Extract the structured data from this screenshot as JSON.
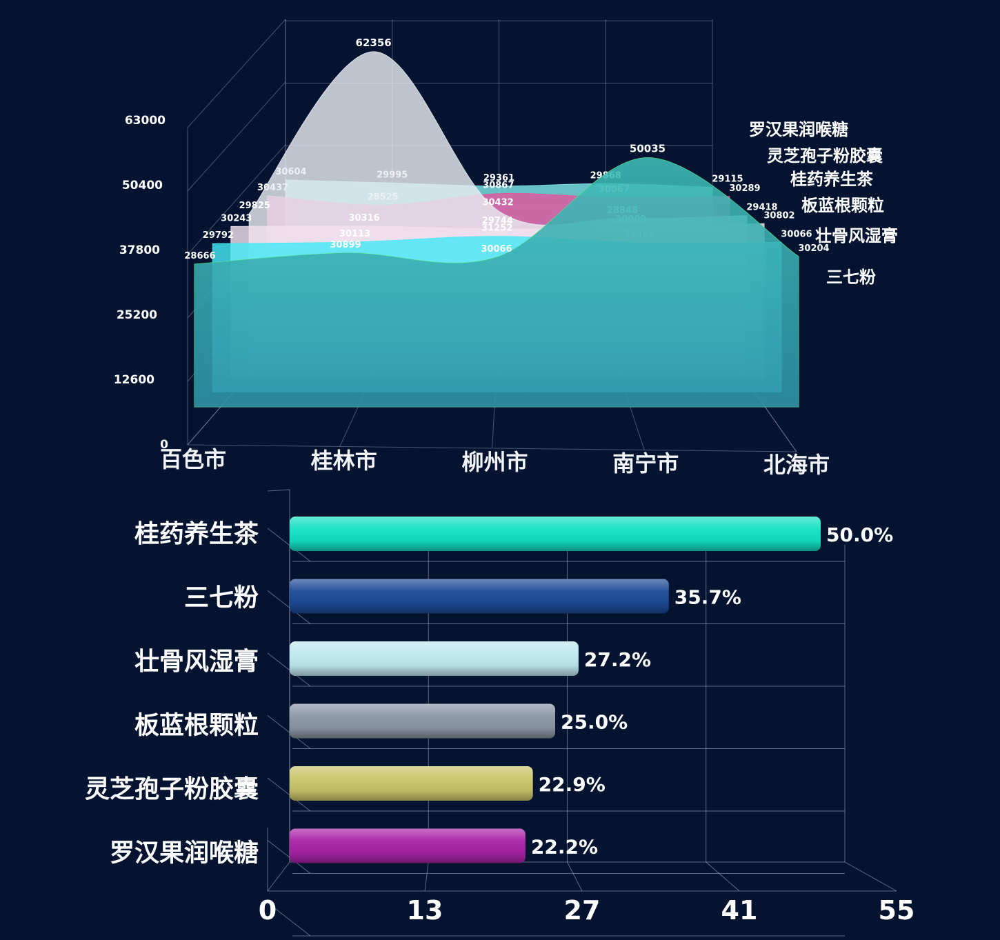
{
  "chart_data": [
    {
      "type": "area",
      "title": "",
      "categories": [
        "百色市",
        "桂林市",
        "柳州市",
        "南宁市",
        "北海市"
      ],
      "y_ticks": [
        "0",
        "12600",
        "25200",
        "37800",
        "50400",
        "63000"
      ],
      "ylim": [
        0,
        63000
      ],
      "grid": true,
      "legend_position": "right",
      "series": [
        {
          "name": "罗汉果润喉糖",
          "values": [
            30604,
            29995,
            29361,
            29868,
            29115
          ],
          "color": "#7ee6e8"
        },
        {
          "name": "灵芝孢子粉胶囊",
          "values": [
            30437,
            28525,
            30867,
            30067,
            30289
          ],
          "color": "#e0569e"
        },
        {
          "name": "桂药养生茶",
          "values": [
            29825,
            62356,
            30432,
            28848,
            29418
          ],
          "color": "#e8ecf2"
        },
        {
          "name": "板蓝根颗粒",
          "values": [
            30243,
            30316,
            29744,
            30009,
            30802
          ],
          "color": "#f2e0ee"
        },
        {
          "name": "壮骨风湿膏",
          "values": [
            29792,
            30113,
            31252,
            29968,
            30066
          ],
          "color": "#45e8f5"
        },
        {
          "name": "三七粉",
          "values": [
            28666,
            30899,
            30066,
            50035,
            30204
          ],
          "color": "#63f27f"
        }
      ]
    },
    {
      "type": "bar",
      "title": "",
      "orientation": "horizontal",
      "categories": [
        "桂药养生茶",
        "三七粉",
        "壮骨风湿膏",
        "板蓝根颗粒",
        "灵芝孢子粉胶囊",
        "罗汉果润喉糖"
      ],
      "values": [
        50.0,
        35.7,
        27.2,
        25.0,
        22.9,
        22.2
      ],
      "value_labels": [
        "50.0%",
        "35.7%",
        "27.2%",
        "25.0%",
        "22.9%",
        "22.2%"
      ],
      "colors": [
        "#14e0c2",
        "#1c4a96",
        "#bfe9f0",
        "#8a97a3",
        "#c9c56a",
        "#a822a8"
      ],
      "x_ticks": [
        "0",
        "13",
        "27",
        "41",
        "55"
      ],
      "xlim": [
        0,
        55
      ],
      "grid": true
    }
  ]
}
